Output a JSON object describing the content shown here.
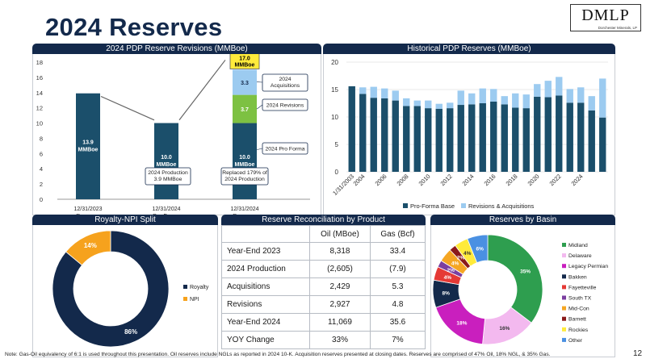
{
  "page": {
    "title": "2024 Reserves",
    "logo": "DMLP",
    "logo_subtitle": "Dorchester Minerals, LP",
    "footnote": "Note: Gas-Oil equivalency of 6:1 is used throughout this presentation. Oil reserves include NGLs as reported in 2024 10-K. Acquisition reserves presented at closing dates. Reserves are comprised of 47% Oil, 18% NGL, & 35% Gas.",
    "page_number": "12"
  },
  "colors": {
    "navy": "#13294b",
    "teal": "#1b4f6b",
    "green": "#7dc142",
    "light_blue": "#9ccbf0",
    "orange": "#f6a21d",
    "yellow": "#ffeb3b"
  },
  "chart_data": [
    {
      "id": "revisions",
      "type": "bar",
      "title": "2024 PDP Reserve Revisions (MMBoe)",
      "categories": [
        "12/31/2023|Reserves",
        "12/31/2024|Pro-Forma",
        "12/31/2024|Reserves"
      ],
      "base_values": [
        13.9,
        10.0,
        10.0
      ],
      "base_labels": [
        "13.9|MMBoe",
        "10.0|MMBoe",
        "10.0|MMBoe"
      ],
      "stack": [
        {
          "name": "2024 Revisions",
          "value": 3.7,
          "label": "3.7"
        },
        {
          "name": "2024 Acquisitions",
          "value": 3.3,
          "label": "3.3"
        }
      ],
      "total_label": "17.0|MMBoe",
      "ylim": [
        0,
        18
      ],
      "yticks": [
        0,
        2,
        4,
        6,
        8,
        10,
        12,
        14,
        16,
        18
      ],
      "annotations": {
        "acquisitions": "2024|Acquisitions",
        "revisions": "2024 Revisions",
        "pro_forma": "2024 Pro Forma",
        "production": "2024 Production|3.9 MMBoe",
        "replaced": "Replaced 179% of|2024 Production"
      }
    },
    {
      "id": "historical",
      "type": "bar",
      "title": "Historical PDP Reserves (MMBoe)",
      "ylim": [
        0,
        20
      ],
      "yticks": [
        0,
        5,
        10,
        15,
        20
      ],
      "tick_labels": [
        "1/31/2003",
        "2004",
        "2006",
        "2008",
        "2010",
        "2012",
        "2014",
        "2016",
        "2018",
        "2020",
        "2022",
        "2024"
      ],
      "series": [
        {
          "name": "Pro-Forma Base",
          "values": [
            15.6,
            14.2,
            13.5,
            13.4,
            13.0,
            12.0,
            12.0,
            11.6,
            11.5,
            11.6,
            12.2,
            12.3,
            12.5,
            12.8,
            12.3,
            11.7,
            11.6,
            13.7,
            13.6,
            13.9,
            12.6,
            12.6,
            11.2,
            9.9
          ]
        },
        {
          "name": "Revisions & Acquisitions",
          "values": [
            0.0,
            1.2,
            2.0,
            1.8,
            1.8,
            1.4,
            1.0,
            1.4,
            0.9,
            1.0,
            2.6,
            2.0,
            2.7,
            2.3,
            1.5,
            2.6,
            2.5,
            2.3,
            3.0,
            3.4,
            2.5,
            2.8,
            2.6,
            7.1
          ]
        }
      ]
    },
    {
      "id": "royalty",
      "type": "pie",
      "title": "Royalty-NPI Split",
      "slices": [
        {
          "name": "Royalty",
          "value": 86,
          "label": "86%"
        },
        {
          "name": "NPI",
          "value": 14,
          "label": "14%"
        }
      ]
    },
    {
      "id": "reconciliation",
      "type": "table",
      "title": "Reserve Reconciliation by Product",
      "columns": [
        "",
        "Oil (MBoe)",
        "Gas (Bcf)"
      ],
      "rows": [
        [
          "Year-End 2023",
          "8,318",
          "33.4"
        ],
        [
          "2024 Production",
          "(2,605)",
          "(7.9)"
        ],
        [
          "Acquisitions",
          "2,429",
          "5.3"
        ],
        [
          "Revisions",
          "2,927",
          "4.8"
        ],
        [
          "Year-End 2024",
          "11,069",
          "35.6"
        ],
        [
          "YOY Change",
          "33%",
          "7%"
        ]
      ]
    },
    {
      "id": "basin",
      "type": "pie",
      "title": "Reserves by Basin",
      "slices": [
        {
          "name": "Midland",
          "value": 35,
          "label": "35%",
          "color": "#2e9e4f"
        },
        {
          "name": "Delaware",
          "value": 16,
          "label": "16%",
          "color": "#f3b9ef"
        },
        {
          "name": "Legacy Permian",
          "value": 18,
          "label": "18%",
          "color": "#c91fbe"
        },
        {
          "name": "Bakken",
          "value": 8,
          "label": "8%",
          "color": "#13294b"
        },
        {
          "name": "Fayetteville",
          "value": 4,
          "label": "4%",
          "color": "#e53935"
        },
        {
          "name": "South TX",
          "value": 2,
          "label": "2%",
          "color": "#7b3fa0"
        },
        {
          "name": "Mid-Con",
          "value": 4,
          "label": "4%",
          "color": "#f5a623"
        },
        {
          "name": "Barnett",
          "value": 2,
          "label": "2%",
          "color": "#8b1a1a"
        },
        {
          "name": "Rockies",
          "value": 4,
          "label": "4%",
          "color": "#ffeb3b"
        },
        {
          "name": "Other",
          "value": 6,
          "label": "6%",
          "color": "#4a90e2"
        }
      ]
    }
  ]
}
